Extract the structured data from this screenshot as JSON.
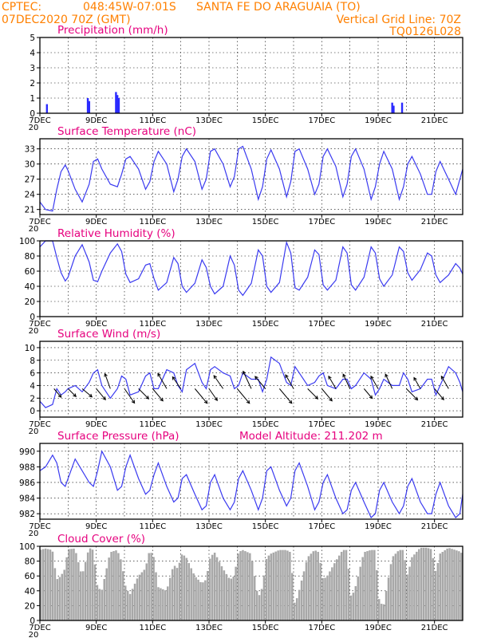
{
  "header": {
    "line1_left": "CPTEC:",
    "coords": "048:45W-07:01S",
    "station": "SANTA FE DO ARAGUAIA (TO)",
    "date": "07DEC2020 70Z (GMT)",
    "grid_note": "Vertical Grid Line: 70Z",
    "model_code": "TQ0126L028"
  },
  "x_tick_labels": [
    "7DEC",
    "9DEC",
    "11DEC",
    "13DEC",
    "15DEC",
    "17DEC",
    "19DEC",
    "21DEC"
  ],
  "x_stub_label": "20",
  "colors": {
    "line": "#3a3af0",
    "bar": "#2a2aff",
    "cloud": "#a8a8a8",
    "title": "#e6007e",
    "header": "#ff8000"
  },
  "chart_data": [
    {
      "type": "bar",
      "title": "Precipitation (mm/h)",
      "ylim": [
        0,
        5
      ],
      "yticks": [
        "0",
        "1",
        "2",
        "3",
        "4",
        "5"
      ],
      "grid": true,
      "x": [
        0.25,
        1.7,
        1.75,
        2.7,
        2.75,
        2.8,
        12.5,
        12.55,
        12.85
      ],
      "values": [
        0.6,
        1.0,
        0.8,
        1.4,
        1.2,
        1.0,
        0.7,
        0.5,
        0.7
      ]
    },
    {
      "type": "line",
      "title": "Surface Temperature (nC)",
      "ylim": [
        20,
        35
      ],
      "yticks": [
        "21",
        "24",
        "27",
        "30",
        "33"
      ],
      "grid": true,
      "x": [
        0,
        0.2,
        0.45,
        0.6,
        0.75,
        0.9,
        1.0,
        1.25,
        1.5,
        1.75,
        1.9,
        2.05,
        2.2,
        2.5,
        2.75,
        2.9,
        3.05,
        3.2,
        3.5,
        3.75,
        3.9,
        4.05,
        4.2,
        4.5,
        4.75,
        4.9,
        5.05,
        5.2,
        5.5,
        5.75,
        5.9,
        6.05,
        6.2,
        6.5,
        6.75,
        6.9,
        7.05,
        7.2,
        7.5,
        7.75,
        7.9,
        8.05,
        8.2,
        8.5,
        8.75,
        8.9,
        9.05,
        9.2,
        9.5,
        9.75,
        9.9,
        10.05,
        10.2,
        10.5,
        10.75,
        10.9,
        11.05,
        11.2,
        11.5,
        11.75,
        11.9,
        12.05,
        12.2,
        12.5,
        12.75,
        12.9,
        13.05,
        13.2,
        13.5,
        13.75,
        13.9,
        14.05,
        14.2,
        14.5,
        14.75,
        14.9,
        15.0
      ],
      "values": [
        22.5,
        21.0,
        20.7,
        25.0,
        28.5,
        29.8,
        28.7,
        25.0,
        22.5,
        26.0,
        30.5,
        31.0,
        29.0,
        26.0,
        25.5,
        28.0,
        31.0,
        31.5,
        29.0,
        25.0,
        26.5,
        30.5,
        32.5,
        30.0,
        24.5,
        27.0,
        31.5,
        33.0,
        30.5,
        25.0,
        27.0,
        32.5,
        33.0,
        30.0,
        25.5,
        27.5,
        33.0,
        33.5,
        29.0,
        23.0,
        25.5,
        31.0,
        32.8,
        29.0,
        23.5,
        26.5,
        32.5,
        33.0,
        29.0,
        24.0,
        26.0,
        31.5,
        33.0,
        29.5,
        23.5,
        26.0,
        31.5,
        33.0,
        29.0,
        23.0,
        25.5,
        30.0,
        32.5,
        29.0,
        23.0,
        25.5,
        30.0,
        31.5,
        28.0,
        24.0,
        24.0,
        28.5,
        30.5,
        27.0,
        24.0,
        27.0,
        29.0
      ]
    },
    {
      "type": "line",
      "title": "Relative Humidity (%)",
      "ylim": [
        0,
        100
      ],
      "yticks": [
        "0",
        "20",
        "40",
        "60",
        "80",
        "100"
      ],
      "grid": true,
      "x": [
        0,
        0.2,
        0.45,
        0.6,
        0.75,
        0.9,
        1.0,
        1.25,
        1.5,
        1.75,
        1.9,
        2.05,
        2.2,
        2.5,
        2.75,
        2.9,
        3.05,
        3.2,
        3.5,
        3.75,
        3.9,
        4.05,
        4.2,
        4.5,
        4.75,
        4.9,
        5.05,
        5.2,
        5.5,
        5.75,
        5.9,
        6.05,
        6.2,
        6.5,
        6.75,
        6.9,
        7.05,
        7.2,
        7.5,
        7.75,
        7.9,
        8.05,
        8.2,
        8.5,
        8.75,
        8.9,
        9.05,
        9.2,
        9.5,
        9.75,
        9.9,
        10.05,
        10.2,
        10.5,
        10.75,
        10.9,
        11.05,
        11.2,
        11.5,
        11.75,
        11.9,
        12.05,
        12.2,
        12.5,
        12.75,
        12.9,
        13.05,
        13.2,
        13.5,
        13.75,
        13.9,
        14.05,
        14.2,
        14.5,
        14.75,
        14.9,
        15.0
      ],
      "values": [
        92,
        100,
        100,
        78,
        58,
        47,
        52,
        80,
        95,
        72,
        48,
        46,
        60,
        84,
        96,
        86,
        56,
        45,
        50,
        68,
        70,
        50,
        35,
        45,
        78,
        70,
        40,
        32,
        44,
        75,
        65,
        40,
        30,
        40,
        80,
        68,
        35,
        28,
        44,
        88,
        80,
        40,
        32,
        45,
        98,
        84,
        38,
        35,
        52,
        88,
        82,
        42,
        35,
        48,
        92,
        84,
        42,
        35,
        52,
        92,
        84,
        50,
        40,
        55,
        92,
        86,
        58,
        48,
        62,
        84,
        80,
        55,
        45,
        55,
        70,
        64,
        56
      ]
    },
    {
      "type": "line",
      "title": "Surface Wind (m/s)",
      "ylim": [
        -1,
        11
      ],
      "yticks": [
        "0",
        "2",
        "4",
        "6",
        "8",
        "10"
      ],
      "grid": true,
      "x": [
        0,
        0.2,
        0.45,
        0.6,
        0.75,
        0.9,
        1.0,
        1.25,
        1.5,
        1.75,
        1.9,
        2.05,
        2.2,
        2.5,
        2.75,
        2.9,
        3.05,
        3.2,
        3.5,
        3.75,
        3.9,
        4.05,
        4.2,
        4.5,
        4.75,
        4.9,
        5.05,
        5.2,
        5.5,
        5.75,
        5.9,
        6.05,
        6.2,
        6.5,
        6.75,
        6.9,
        7.05,
        7.2,
        7.5,
        7.75,
        7.9,
        8.05,
        8.2,
        8.5,
        8.75,
        8.9,
        9.05,
        9.2,
        9.5,
        9.75,
        9.9,
        10.05,
        10.2,
        10.5,
        10.75,
        10.9,
        11.05,
        11.2,
        11.5,
        11.75,
        11.9,
        12.05,
        12.2,
        12.5,
        12.75,
        12.9,
        13.05,
        13.2,
        13.5,
        13.75,
        13.9,
        14.05,
        14.2,
        14.5,
        14.75,
        14.9,
        15.0
      ],
      "values": [
        1.5,
        0.5,
        1.0,
        3.5,
        2.5,
        3.0,
        3.5,
        4.0,
        3.0,
        4.5,
        6.0,
        6.5,
        4.0,
        2.0,
        3.5,
        5.5,
        5.0,
        2.5,
        3.0,
        5.5,
        6.0,
        3.5,
        3.5,
        6.5,
        6.0,
        4.0,
        3.0,
        6.5,
        7.5,
        4.5,
        3.5,
        6.5,
        7.0,
        6.0,
        5.5,
        3.5,
        4.0,
        6.0,
        5.0,
        5.0,
        3.0,
        5.0,
        8.5,
        7.5,
        4.5,
        4.0,
        7.0,
        6.0,
        4.0,
        4.5,
        5.5,
        6.0,
        4.0,
        3.5,
        5.0,
        5.0,
        3.5,
        4.0,
        6.0,
        5.0,
        2.5,
        3.5,
        5.0,
        4.0,
        4.0,
        6.0,
        5.0,
        3.0,
        3.5,
        5.0,
        5.0,
        2.5,
        4.0,
        7.0,
        6.0,
        4.5,
        3.0
      ],
      "vectors": {
        "x": [
          0.5,
          1.0,
          1.5,
          2.0,
          2.5,
          3.0,
          3.5,
          4.0,
          4.5,
          5.0,
          5.5,
          6.0,
          6.5,
          7.0,
          7.5,
          8.0,
          8.5,
          9.0,
          9.5,
          10.0,
          10.5,
          11.0,
          11.5,
          12.0,
          12.5,
          13.0,
          13.5,
          14.0,
          14.5
        ],
        "speed": [
          3.5,
          3.5,
          4,
          4.5,
          5,
          5.5,
          4.5,
          5,
          5.5,
          4.5,
          6,
          4.5,
          5,
          6,
          6,
          5,
          6,
          5,
          4.5,
          5,
          4.5,
          5,
          4,
          4.5,
          5,
          5,
          4,
          4.5,
          4.5
        ],
        "dir_deg": [
          40,
          45,
          50,
          40,
          200,
          35,
          45,
          40,
          210,
          215,
          40,
          35,
          215,
          40,
          205,
          220,
          40,
          210,
          45,
          40,
          210,
          205,
          40,
          210,
          205,
          45,
          210,
          40,
          210
        ]
      }
    },
    {
      "type": "line",
      "title": "Surface Pressure (hPa)",
      "subtitle": "Model Altitude: 211.202 m",
      "ylim": [
        981.3,
        991.0
      ],
      "yticks": [
        "982",
        "984",
        "986",
        "988",
        "990"
      ],
      "grid": true,
      "x": [
        0,
        0.2,
        0.45,
        0.6,
        0.75,
        0.9,
        1.0,
        1.25,
        1.5,
        1.75,
        1.9,
        2.05,
        2.2,
        2.5,
        2.75,
        2.9,
        3.05,
        3.2,
        3.5,
        3.75,
        3.9,
        4.05,
        4.2,
        4.5,
        4.75,
        4.9,
        5.05,
        5.2,
        5.5,
        5.75,
        5.9,
        6.05,
        6.2,
        6.5,
        6.75,
        6.9,
        7.05,
        7.2,
        7.5,
        7.75,
        7.9,
        8.05,
        8.2,
        8.5,
        8.75,
        8.9,
        9.05,
        9.2,
        9.5,
        9.75,
        9.9,
        10.05,
        10.2,
        10.5,
        10.75,
        10.9,
        11.05,
        11.2,
        11.5,
        11.75,
        11.9,
        12.05,
        12.2,
        12.5,
        12.75,
        12.9,
        13.05,
        13.2,
        13.5,
        13.75,
        13.9,
        14.05,
        14.2,
        14.5,
        14.75,
        14.9,
        15.0
      ],
      "values": [
        987.5,
        988.0,
        989.5,
        988.5,
        986.0,
        985.5,
        986.5,
        989.0,
        987.5,
        986.0,
        985.5,
        987.5,
        990.0,
        988.0,
        985.0,
        985.5,
        988.0,
        989.5,
        986.5,
        984.5,
        985.0,
        987.0,
        988.5,
        985.5,
        983.5,
        984.0,
        986.5,
        987.0,
        984.5,
        982.5,
        983.0,
        986.0,
        987.0,
        984.0,
        982.5,
        983.5,
        986.5,
        987.5,
        985.0,
        982.5,
        984.0,
        987.5,
        988.0,
        985.0,
        983.0,
        984.0,
        987.5,
        988.5,
        985.5,
        982.5,
        983.5,
        986.0,
        987.0,
        984.0,
        982.0,
        982.5,
        985.0,
        986.0,
        983.5,
        981.5,
        982.0,
        985.0,
        986.0,
        983.5,
        982.0,
        983.0,
        985.5,
        986.5,
        983.5,
        982.0,
        982.0,
        984.5,
        986.0,
        983.0,
        981.5,
        982.0,
        984.5
      ]
    },
    {
      "type": "area",
      "title": "Cloud Cover (%)",
      "ylim": [
        0,
        100
      ],
      "yticks": [
        "0",
        "20",
        "40",
        "60",
        "80",
        "100"
      ],
      "grid": true,
      "x": [
        0,
        0.2,
        0.45,
        0.6,
        0.75,
        0.9,
        1.0,
        1.25,
        1.5,
        1.75,
        1.9,
        2.05,
        2.2,
        2.5,
        2.75,
        2.9,
        3.05,
        3.2,
        3.5,
        3.75,
        3.9,
        4.05,
        4.2,
        4.5,
        4.75,
        4.9,
        5.05,
        5.2,
        5.5,
        5.75,
        5.9,
        6.05,
        6.2,
        6.5,
        6.75,
        6.9,
        7.05,
        7.2,
        7.5,
        7.75,
        7.9,
        8.05,
        8.2,
        8.5,
        8.75,
        8.9,
        9.05,
        9.2,
        9.5,
        9.75,
        9.9,
        10.05,
        10.2,
        10.5,
        10.75,
        10.9,
        11.05,
        11.2,
        11.5,
        11.75,
        11.9,
        12.05,
        12.2,
        12.5,
        12.75,
        12.9,
        13.05,
        13.2,
        13.5,
        13.75,
        13.9,
        14.05,
        14.2,
        14.5,
        14.75,
        14.9,
        15.0
      ],
      "values": [
        95,
        97,
        95,
        55,
        60,
        70,
        96,
        97,
        60,
        98,
        95,
        45,
        40,
        92,
        95,
        80,
        45,
        35,
        60,
        70,
        95,
        85,
        45,
        40,
        75,
        70,
        90,
        85,
        60,
        50,
        55,
        85,
        92,
        70,
        55,
        60,
        92,
        95,
        90,
        30,
        45,
        85,
        90,
        95,
        95,
        92,
        20,
        40,
        85,
        95,
        92,
        55,
        60,
        80,
        95,
        95,
        30,
        45,
        92,
        95,
        95,
        25,
        20,
        85,
        95,
        95,
        60,
        85,
        98,
        98,
        96,
        65,
        90,
        98,
        95,
        93,
        90
      ]
    }
  ]
}
